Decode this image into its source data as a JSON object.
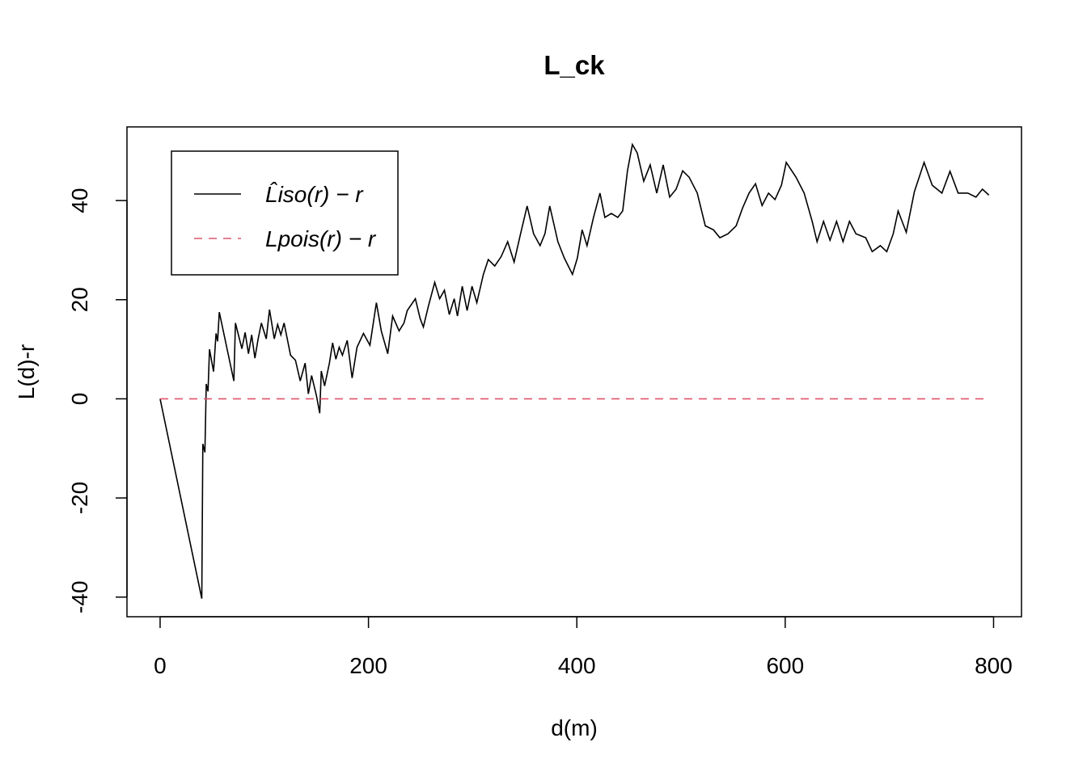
{
  "chart_data": {
    "type": "line",
    "title": "L_ck",
    "x_label": "d(m)",
    "y_label": "L(d)-r",
    "xlim": [
      -31.8,
      826.8
    ],
    "ylim": [
      -43.96,
      54.86
    ],
    "xticks": [
      0,
      200,
      400,
      600,
      800
    ],
    "yticks": [
      -40,
      -20,
      0,
      20,
      40
    ],
    "legend": "top-left",
    "series": [
      {
        "name": "L̂iso(r) − r",
        "color": "#000000",
        "dash": false,
        "x": [
          0,
          40,
          41,
          43,
          44.3,
          46,
          47.4,
          51.3,
          53.7,
          55.2,
          56.8,
          70.8,
          72.3,
          78.5,
          81.6,
          84.8,
          87.9,
          91,
          94.1,
          97.2,
          101.9,
          105,
          109.6,
          112.8,
          115.9,
          119,
          125.2,
          129.9,
          134.5,
          139.2,
          142.3,
          145.4,
          150,
          153.2,
          154.7,
          157.9,
          162.5,
          165.6,
          168.7,
          171.9,
          175,
          179.6,
          184.3,
          189,
          195.2,
          201.4,
          207.6,
          212.3,
          218.5,
          223.2,
          229.4,
          234.1,
          237.2,
          245,
          249.6,
          252.7,
          257.4,
          263.6,
          268.3,
          272.9,
          277.6,
          282.3,
          285.4,
          290,
          294.7,
          299.4,
          304,
          310.3,
          315,
          321.2,
          327.4,
          333.6,
          339.8,
          346,
          352.3,
          358.5,
          364.7,
          369.4,
          374,
          381.8,
          388,
          395.8,
          400.5,
          405.1,
          409.8,
          416,
          422.2,
          426.9,
          433.1,
          439.3,
          444,
          448.6,
          453.3,
          458,
          464.2,
          470.4,
          476.7,
          482.9,
          489.1,
          495.3,
          501.6,
          507.8,
          515.6,
          523.3,
          531.1,
          537.3,
          545.1,
          552.9,
          559.1,
          565.3,
          571.5,
          577.8,
          584,
          590.2,
          596.4,
          601,
          610.4,
          618.2,
          625.9,
          630.6,
          636.8,
          643,
          649.3,
          655.5,
          661.7,
          667.9,
          677.3,
          683.5,
          691.3,
          697.5,
          703.7,
          708.4,
          716.2,
          724,
          733.3,
          741.1,
          750.4,
          758.2,
          766,
          775.3,
          783.1,
          789.3,
          795.5
        ],
        "values": [
          0,
          -40.3,
          -9.1,
          -10.8,
          3,
          1.5,
          10,
          5.5,
          13.2,
          11.6,
          17.5,
          3.6,
          15.3,
          10.1,
          13.4,
          9.1,
          12.9,
          8.2,
          12.1,
          15.3,
          12.1,
          18,
          12.1,
          15,
          12.9,
          15.3,
          8.8,
          7.8,
          3.6,
          7.2,
          1,
          4.7,
          0.7,
          -2.9,
          5.6,
          2.6,
          7.2,
          11.3,
          8,
          10.4,
          8.8,
          11.8,
          4.2,
          10.4,
          13.2,
          10.8,
          19.4,
          13.7,
          9.1,
          16.7,
          13.7,
          15.3,
          17.8,
          20.2,
          16.2,
          14.5,
          18.6,
          23.5,
          20.2,
          21.9,
          17,
          20.2,
          16.7,
          22.7,
          17.8,
          22.7,
          19.4,
          25.1,
          28.1,
          26.8,
          28.7,
          31.7,
          27.6,
          33.3,
          38.9,
          33.3,
          30.9,
          33.3,
          38.9,
          31.7,
          28.4,
          25.1,
          28.4,
          34.1,
          30.9,
          36.6,
          41.5,
          36.6,
          37.4,
          36.6,
          37.9,
          46,
          51.3,
          49.6,
          43.9,
          47.2,
          41.5,
          47.2,
          40.7,
          42.3,
          46,
          44.7,
          41.5,
          34.9,
          34.1,
          32.5,
          33.3,
          34.9,
          38.5,
          41.5,
          43.4,
          39,
          41.5,
          40.2,
          43.1,
          47.7,
          44.7,
          41.5,
          35.8,
          31.7,
          35.8,
          32,
          35.8,
          31.7,
          35.8,
          33.3,
          32.5,
          29.7,
          30.9,
          29.7,
          33.3,
          37.9,
          33.6,
          41.8,
          47.7,
          43.1,
          41.5,
          45.9,
          41.5,
          41.5,
          40.7,
          42.3,
          41.1
        ]
      },
      {
        "name": "Lpois(r) − r",
        "color": "#DF536B",
        "dash": true,
        "x": [
          0,
          795.5
        ],
        "values": [
          0,
          0
        ]
      }
    ]
  }
}
